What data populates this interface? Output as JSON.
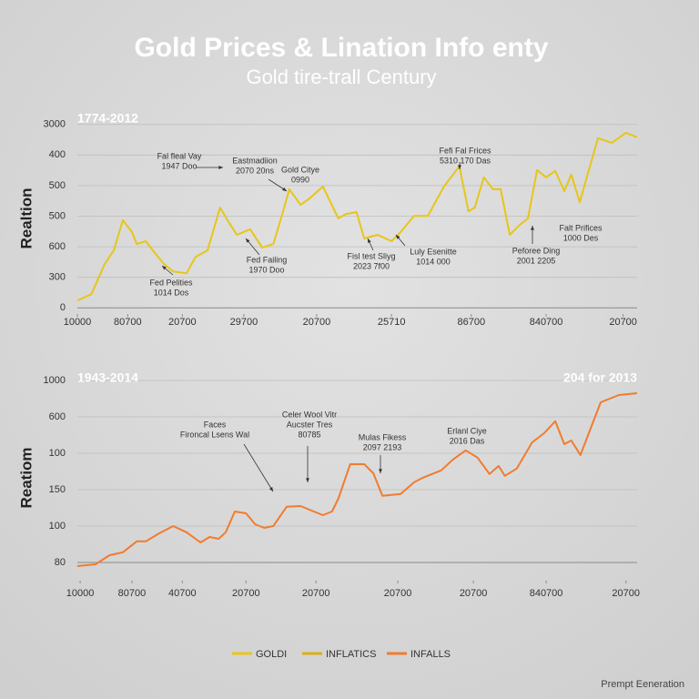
{
  "header": {
    "title": "Gold Prices & Lination Info enty",
    "subtitle": "Gold tire-trall Century"
  },
  "chart_data": [
    {
      "type": "line",
      "range_label": "1774-2012",
      "ylabel": "Realtion",
      "grid": true,
      "xlim": [
        0,
        8
      ],
      "ylim": [
        -0.2,
        6.2
      ],
      "xticks": [
        {
          "value": 0,
          "label": "10000"
        },
        {
          "value": 0.72,
          "label": "80700"
        },
        {
          "value": 1.5,
          "label": "20700"
        },
        {
          "value": 2.38,
          "label": "29700"
        },
        {
          "value": 3.42,
          "label": "20700"
        },
        {
          "value": 4.49,
          "label": "25710"
        },
        {
          "value": 5.63,
          "label": "86700"
        },
        {
          "value": 6.7,
          "label": "840700"
        },
        {
          "value": 7.8,
          "label": "20700"
        }
      ],
      "yticks": [
        0,
        {
          "value": 1,
          "label": "300"
        },
        {
          "value": 2,
          "label": "600"
        },
        {
          "value": 3,
          "label": "500"
        },
        {
          "value": 4,
          "label": "500"
        },
        {
          "value": 5,
          "label": "400"
        },
        {
          "value": 6,
          "label": "3000"
        }
      ],
      "series": [
        {
          "color": "#e6c619",
          "x": [
            0,
            0.2,
            0.39,
            0.52,
            0.65,
            0.78,
            0.85,
            0.98,
            1.11,
            1.24,
            1.37,
            1.56,
            1.69,
            1.86,
            2.04,
            2.17,
            2.28,
            2.47,
            2.64,
            2.8,
            2.93,
            3.03,
            3.19,
            3.32,
            3.51,
            3.73,
            3.84,
            3.99,
            4.1,
            4.29,
            4.49,
            4.62,
            4.81,
            5.01,
            5.24,
            5.46,
            5.59,
            5.68,
            5.81,
            5.94,
            6.05,
            6.18,
            6.31,
            6.44,
            6.57,
            6.7,
            6.83,
            6.96,
            7.06,
            7.18,
            7.44,
            7.64,
            7.84,
            8.0
          ],
          "values": [
            0.24,
            0.45,
            1.43,
            1.88,
            2.87,
            2.48,
            2.09,
            2.18,
            1.79,
            1.43,
            1.19,
            1.13,
            1.67,
            1.88,
            3.28,
            2.78,
            2.39,
            2.57,
            1.97,
            2.09,
            3.07,
            3.88,
            3.37,
            3.58,
            3.97,
            2.93,
            3.07,
            3.13,
            2.27,
            2.39,
            2.18,
            2.48,
            3.01,
            3.01,
            3.97,
            4.63,
            3.16,
            3.28,
            4.27,
            3.88,
            3.88,
            2.39,
            2.69,
            2.93,
            4.51,
            4.27,
            4.48,
            3.82,
            4.36,
            3.46,
            5.55,
            5.4,
            5.73,
            5.58
          ]
        }
      ],
      "annotations": [
        {
          "lines": [
            "Fal fleal Vay",
            "1947 Doo"
          ]
        },
        {
          "lines": [
            "Eastmadiion",
            "2070 20ns"
          ]
        },
        {
          "lines": [
            "Gold Citye",
            "0990"
          ]
        },
        {
          "lines": [
            "Fefi Fal Frices",
            "5310 170 Das"
          ]
        },
        {
          "lines": [
            "Fed Failing",
            "1970 Doo"
          ]
        },
        {
          "lines": [
            "Fed Pelities",
            "1014 Dos"
          ]
        },
        {
          "lines": [
            "Fisl test Sliyg",
            "2023 7f00"
          ]
        },
        {
          "lines": [
            "Luly Esenitte",
            "1014 000"
          ]
        },
        {
          "lines": [
            "Falt Prifices",
            "1000 Des"
          ]
        },
        {
          "lines": [
            "Peforee Ding",
            "2001 2205"
          ]
        }
      ]
    },
    {
      "type": "line",
      "range_label": "1943-2014",
      "range_label_right": "204 for 2013",
      "ylabel": "Reatiom",
      "grid": true,
      "xlim": [
        0,
        8
      ],
      "ylim": [
        -0.5,
        5.2
      ],
      "xticks": [
        {
          "value": 0.04,
          "label": "10000"
        },
        {
          "value": 0.78,
          "label": "80700"
        },
        {
          "value": 1.5,
          "label": "40700"
        },
        {
          "value": 2.41,
          "label": "20700"
        },
        {
          "value": 3.41,
          "label": "20700"
        },
        {
          "value": 4.58,
          "label": "20700"
        },
        {
          "value": 5.66,
          "label": "20700"
        },
        {
          "value": 6.7,
          "label": "840700"
        },
        {
          "value": 7.84,
          "label": "20700"
        }
      ],
      "yticks": [
        {
          "value": 0,
          "label": "80"
        },
        {
          "value": 1,
          "label": "100"
        },
        {
          "value": 2,
          "label": "150"
        },
        {
          "value": 3,
          "label": "100"
        },
        {
          "value": 4,
          "label": "600"
        },
        {
          "value": 5,
          "label": "1000"
        }
      ],
      "series": [
        {
          "color": "#f07c2e",
          "x": [
            0,
            0.26,
            0.46,
            0.65,
            0.85,
            0.98,
            1.17,
            1.37,
            1.56,
            1.76,
            1.89,
            2.02,
            2.12,
            2.25,
            2.41,
            2.54,
            2.67,
            2.8,
            2.99,
            3.19,
            3.38,
            3.51,
            3.64,
            3.73,
            3.9,
            4.1,
            4.23,
            4.36,
            4.62,
            4.81,
            4.94,
            5.2,
            5.37,
            5.55,
            5.72,
            5.89,
            6.02,
            6.11,
            6.28,
            6.5,
            6.67,
            6.83,
            6.96,
            7.06,
            7.19,
            7.35,
            7.48,
            7.74,
            8.0
          ],
          "values": [
            -0.1,
            -0.05,
            0.2,
            0.28,
            0.58,
            0.58,
            0.8,
            1.0,
            0.83,
            0.55,
            0.7,
            0.65,
            0.83,
            1.4,
            1.35,
            1.05,
            0.95,
            1.0,
            1.53,
            1.55,
            1.4,
            1.3,
            1.4,
            1.75,
            2.7,
            2.7,
            2.45,
            1.83,
            1.88,
            2.2,
            2.33,
            2.53,
            2.83,
            3.08,
            2.88,
            2.43,
            2.65,
            2.38,
            2.58,
            3.3,
            3.55,
            3.88,
            3.25,
            3.35,
            2.95,
            3.75,
            4.4,
            4.6,
            4.65
          ]
        }
      ],
      "annotations": [
        {
          "lines": [
            "Faces",
            "Fironcal Lsens Wal"
          ]
        },
        {
          "lines": [
            "Celer Wool Vitr",
            "Aucster Tres",
            "80785"
          ]
        },
        {
          "lines": [
            "Mulas Fikess",
            "2097 2193"
          ]
        },
        {
          "lines": [
            "Erlanl Ciye",
            "2016 Das"
          ]
        }
      ]
    }
  ],
  "legend": [
    {
      "name": "GOLDI",
      "color": "#e6c619"
    },
    {
      "name": "INFLATICS",
      "color": "#d8b116"
    },
    {
      "name": "INFALLS",
      "color": "#f07c2e"
    }
  ],
  "footer": "Prempt Eeneration"
}
